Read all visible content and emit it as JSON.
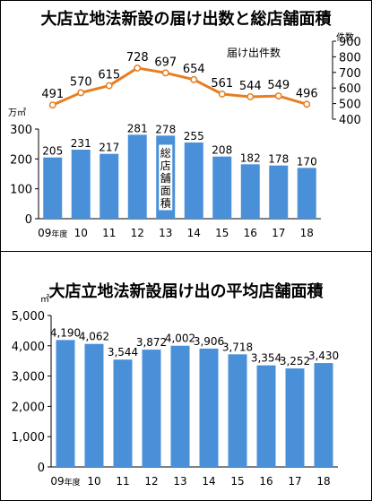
{
  "chart_data": [
    {
      "type": "bar",
      "title": "大店立地法新設の届け出数と総店舗面積",
      "categories": [
        "09年度",
        "10",
        "11",
        "12",
        "13",
        "14",
        "15",
        "16",
        "17",
        "18"
      ],
      "series": [
        {
          "name": "総店舗面積",
          "type": "bar",
          "unit": "万㎡",
          "values": [
            205,
            231,
            217,
            281,
            278,
            255,
            208,
            182,
            178,
            170
          ],
          "axis": "left",
          "ylim": [
            0,
            300
          ],
          "ticks": [
            0,
            100,
            200,
            300
          ],
          "color": "#4a90d9"
        },
        {
          "name": "届け出件数",
          "type": "line",
          "unit": "件数",
          "values": [
            491,
            570,
            615,
            728,
            697,
            654,
            561,
            544,
            549,
            496
          ],
          "axis": "right",
          "ylim": [
            400,
            900
          ],
          "ticks": [
            400,
            500,
            600,
            700,
            800,
            900
          ],
          "color": "#e67e22"
        }
      ],
      "bar_series_label_chars": [
        "総",
        "店",
        "舗",
        "面",
        "積"
      ],
      "grid": false,
      "legend": "inline"
    },
    {
      "type": "bar",
      "title": "大店立地法新設届け出の平均店舗面積",
      "categories": [
        "09年度",
        "10",
        "11",
        "12",
        "13",
        "14",
        "15",
        "16",
        "17",
        "18"
      ],
      "values": [
        4190,
        4062,
        3544,
        3872,
        4002,
        3906,
        3718,
        3354,
        3252,
        3430
      ],
      "value_labels": [
        "4,190",
        "4,062",
        "3,544",
        "3,872",
        "4,002",
        "3,906",
        "3,718",
        "3,354",
        "3,252",
        "3,430"
      ],
      "unit": "㎡",
      "ylim": [
        0,
        5000
      ],
      "ticks": [
        0,
        1000,
        2000,
        3000,
        4000,
        5000
      ],
      "tick_labels": [
        "0",
        "1,000",
        "2,000",
        "3,000",
        "4,000",
        "5,000"
      ],
      "color": "#4a90d9",
      "grid": false,
      "legend": "none"
    }
  ]
}
